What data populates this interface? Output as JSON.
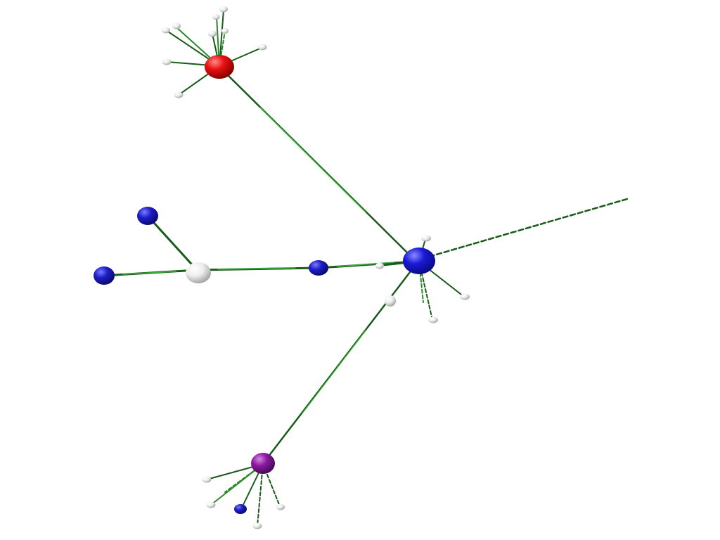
{
  "background": "#ffffff",
  "colors": {
    "hub": "#1a1ad6",
    "hub_dark": "#0a0a8a",
    "red": "#e81010",
    "red_dark": "#8a0000",
    "purple": "#8a1aa0",
    "purple_dark": "#4a0a5a",
    "blue": "#1e1ec8",
    "blue_dark": "#0a0a70",
    "white": "#eeeeee",
    "white_dark": "#a8a8a8",
    "edge": "#1a5a1a",
    "edge_light": "#4cd44c"
  },
  "diagram": {
    "nodes": [
      {
        "id": "hub",
        "kind": "hub",
        "icon": "central-blue-node-icon"
      },
      {
        "id": "red",
        "kind": "red",
        "icon": "red-node-icon"
      },
      {
        "id": "purple",
        "kind": "purple",
        "icon": "purple-node-icon"
      },
      {
        "id": "b-mid",
        "kind": "blue",
        "icon": "blue-node-icon"
      },
      {
        "id": "w-branch",
        "kind": "white",
        "icon": "white-node-icon"
      },
      {
        "id": "b-top",
        "kind": "blue",
        "icon": "blue-node-icon"
      },
      {
        "id": "b-left",
        "kind": "blue",
        "icon": "blue-node-icon"
      },
      {
        "id": "w-link1",
        "kind": "white",
        "icon": "white-node-icon"
      },
      {
        "id": "w-link2",
        "kind": "white",
        "icon": "white-node-icon"
      },
      {
        "id": "b-small",
        "kind": "blue",
        "icon": "blue-node-icon"
      }
    ],
    "edges": [
      {
        "from": "red",
        "to": "hub",
        "style": "solid"
      },
      {
        "from": "hub",
        "to": "purple",
        "style": "solid"
      },
      {
        "from": "hub",
        "to": "offscreen-right",
        "style": "dashed"
      },
      {
        "from": "hub",
        "to": "b-mid",
        "style": "solid"
      },
      {
        "from": "b-mid",
        "to": "w-branch",
        "style": "solid"
      },
      {
        "from": "w-branch",
        "to": "b-top",
        "style": "solid"
      },
      {
        "from": "w-branch",
        "to": "b-left",
        "style": "solid"
      }
    ]
  }
}
